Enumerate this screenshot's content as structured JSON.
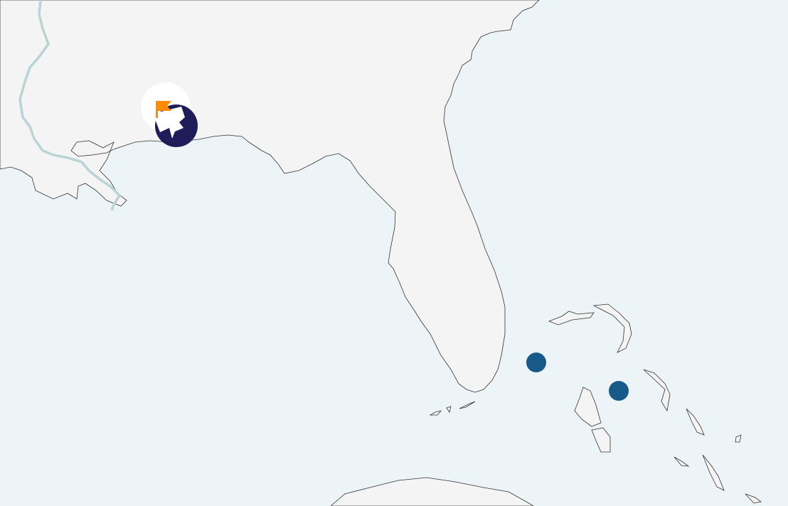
{
  "map": {
    "colors": {
      "water": "#edf4f7",
      "land": "#f4f4f4",
      "coast": "#333333",
      "river": "#b8d4d4"
    },
    "markers": [
      {
        "kind": "cluster",
        "icon": "flag-icon",
        "icon_color": "#ff8c00",
        "color": "#201c5a"
      },
      {
        "kind": "point",
        "color": "#175a8a"
      },
      {
        "kind": "point",
        "color": "#175a8a"
      }
    ]
  }
}
